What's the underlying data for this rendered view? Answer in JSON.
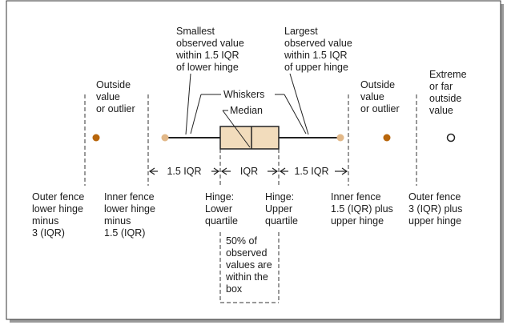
{
  "colors": {
    "box_fill": "#f2dcbc",
    "hinge_dot": "#e2b888",
    "outlier_dot": "#b8660c",
    "line": "#222222"
  },
  "labels": {
    "smallest": [
      "Smallest",
      "observed value",
      "within 1.5 IQR",
      "of lower hinge"
    ],
    "largest": [
      "Largest",
      "observed value",
      "within 1.5 IQR",
      "of upper hinge"
    ],
    "outside_left": [
      "Outside",
      "value",
      "or outlier"
    ],
    "outside_right": [
      "Outside",
      "value",
      "or outlier"
    ],
    "extreme": [
      "Extreme",
      "or far",
      "outside",
      "value"
    ],
    "whiskers": "Whiskers",
    "median": "Median",
    "range_left": "1.5 IQR",
    "range_mid": "IQR",
    "range_right": "1.5 IQR",
    "outer_fence_low": [
      "Outer fence",
      "lower hinge",
      "minus",
      "3 (IQR)"
    ],
    "inner_fence_low": [
      "Inner fence",
      "lower hinge",
      "minus",
      "1.5 (IQR)"
    ],
    "hinge_lower": [
      "Hinge:",
      "Lower",
      "quartile"
    ],
    "hinge_upper": [
      "Hinge:",
      "Upper",
      "quartile"
    ],
    "inner_fence_high": [
      "Inner fence",
      "1.5 (IQR) plus",
      "upper hinge"
    ],
    "outer_fence_high": [
      "Outer fence",
      "3 (IQR) plus",
      "upper hinge"
    ],
    "fifty_percent": [
      "50% of",
      "observed",
      "values are",
      "within the",
      "box"
    ]
  }
}
